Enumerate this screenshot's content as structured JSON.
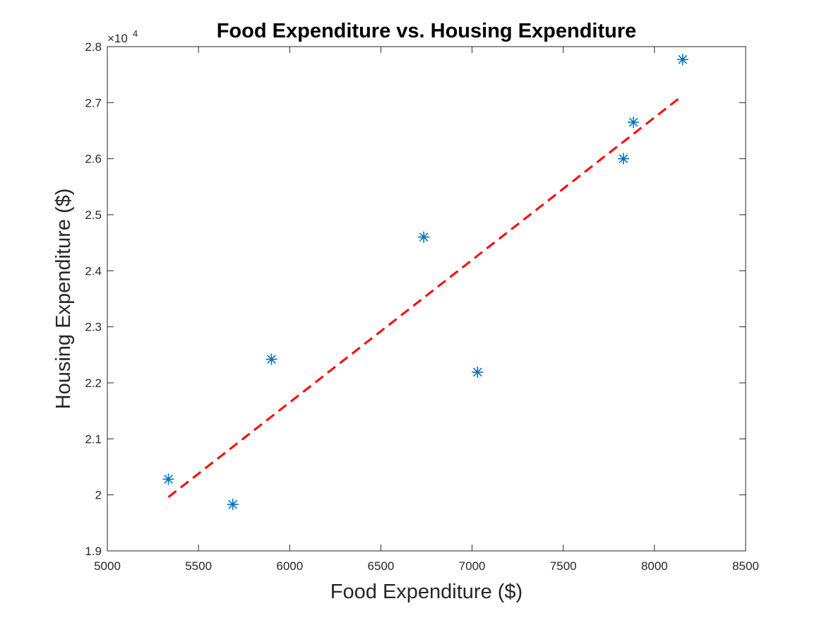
{
  "chart_data": {
    "type": "scatter",
    "title": "Food Expenditure vs. Housing Expenditure",
    "xlabel": "Food Expenditure ($)",
    "ylabel": "Housing Expenditure ($)",
    "xlim": [
      5000,
      8500
    ],
    "ylim": [
      19000,
      28000
    ],
    "x_ticks": [
      5000,
      5500,
      6000,
      6500,
      7000,
      7500,
      8000,
      8500
    ],
    "x_tick_labels": [
      "5000",
      "5500",
      "6000",
      "6500",
      "7000",
      "7500",
      "8000",
      "8500"
    ],
    "y_ticks": [
      19000,
      20000,
      21000,
      22000,
      23000,
      24000,
      25000,
      26000,
      27000,
      28000
    ],
    "y_tick_labels": [
      "1.9",
      "2",
      "2.1",
      "2.2",
      "2.3",
      "2.4",
      "2.5",
      "2.6",
      "2.7",
      "2.8"
    ],
    "y_exponent_base": "×10",
    "y_exponent_power": "4",
    "grid": false,
    "series": [
      {
        "name": "data",
        "marker": "asterisk",
        "color": "#0072BD",
        "x": [
          5335,
          5688,
          5900,
          6735,
          7030,
          7830,
          7885,
          8155
        ],
        "y": [
          20280,
          19830,
          22420,
          24600,
          22190,
          26000,
          26650,
          27770
        ]
      },
      {
        "name": "fit",
        "style": "dashed",
        "color": "#FF0000",
        "x": [
          5335,
          8140
        ],
        "y": [
          19960,
          27090
        ]
      }
    ]
  }
}
